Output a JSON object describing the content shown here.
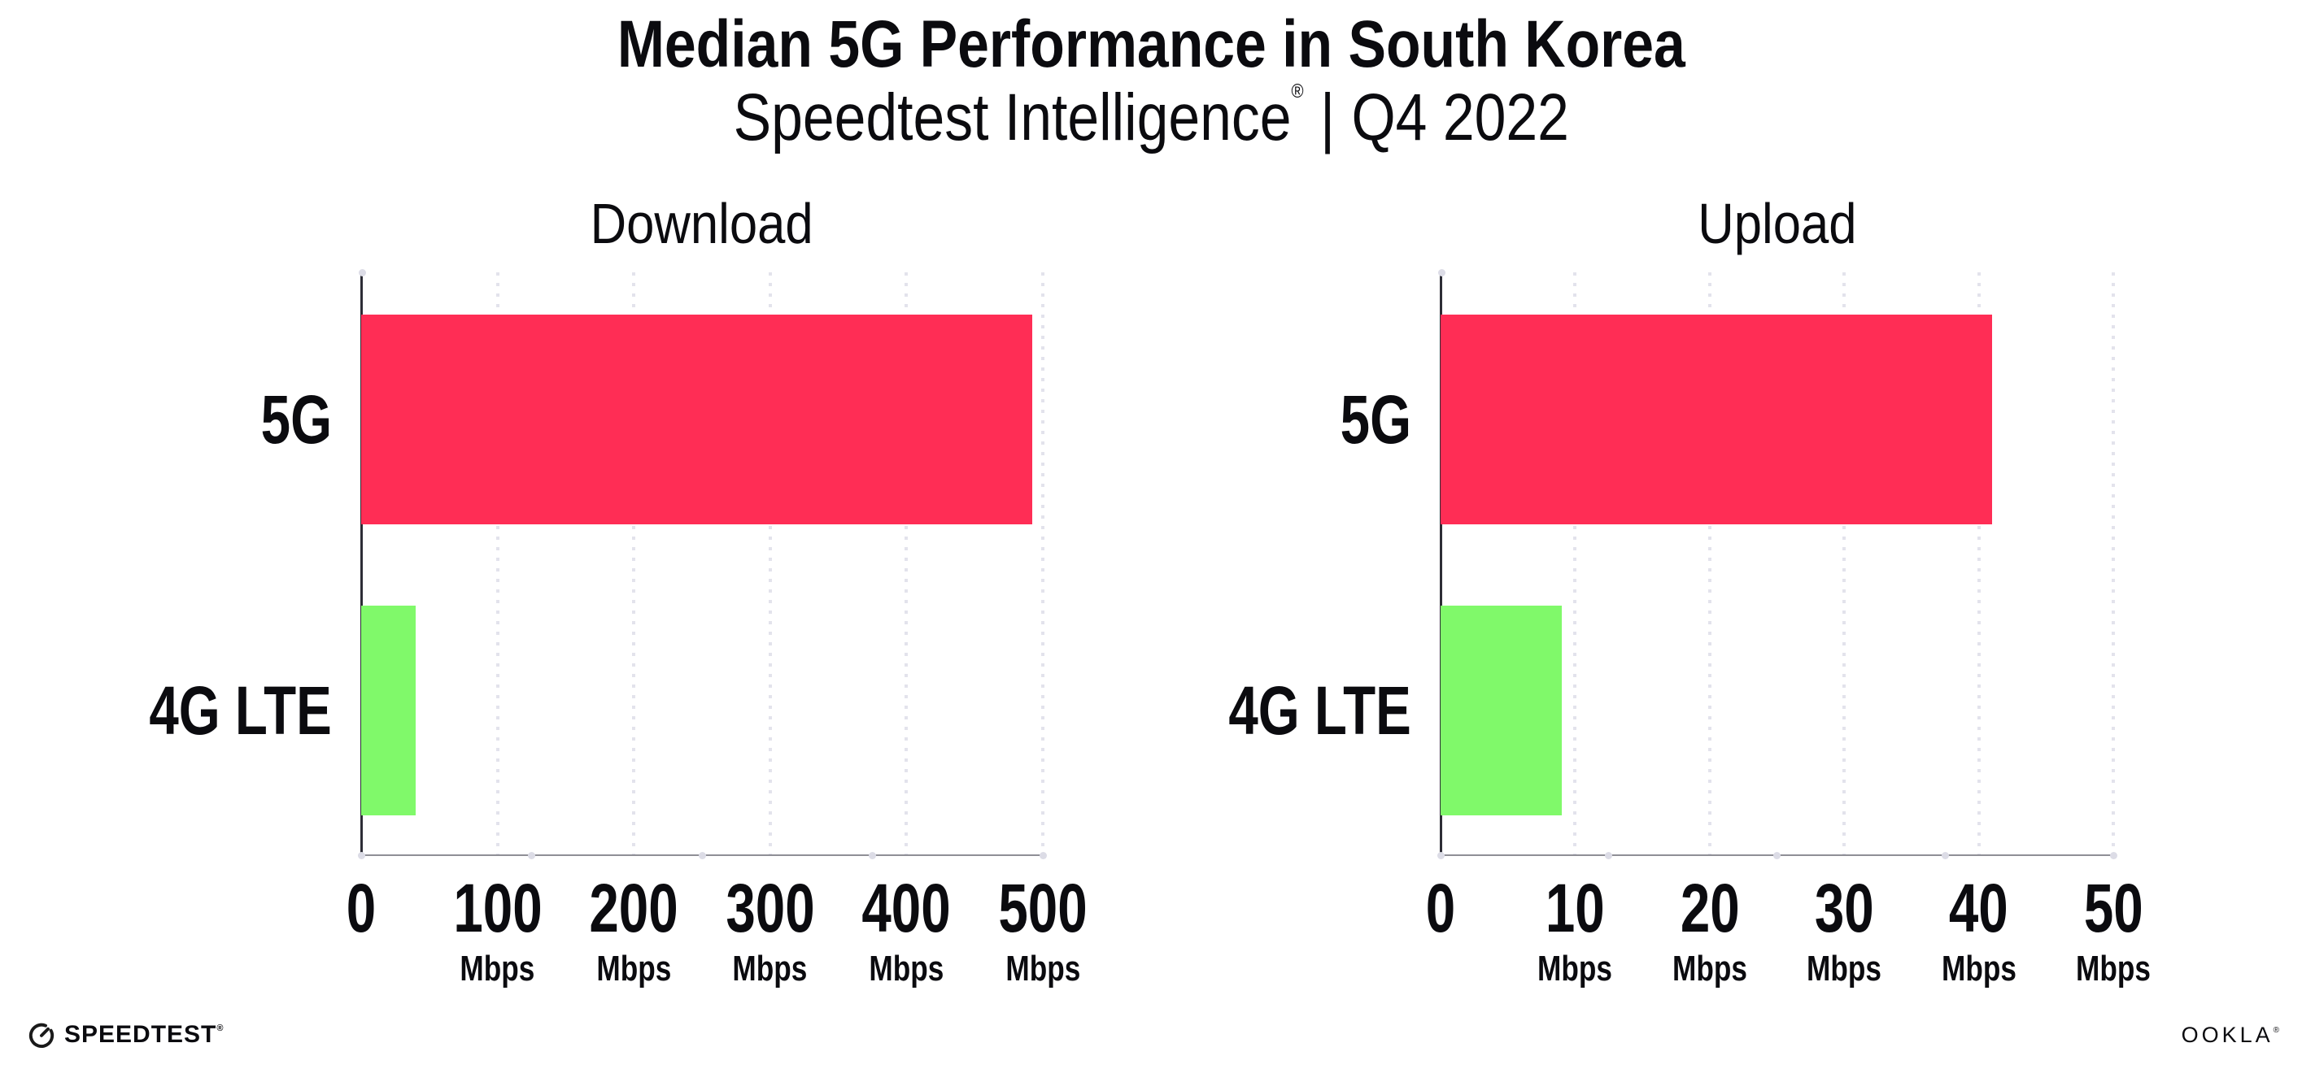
{
  "header": {
    "title": "Median 5G Performance in South Korea",
    "subtitle_brand": "Speedtest Intelligence",
    "subtitle_reg": "®",
    "subtitle_sep": "|",
    "subtitle_period": "Q4 2022"
  },
  "footer": {
    "speedtest_label": "SPEEDTEST",
    "speedtest_mark": "®",
    "ookla_label": "OOKLA",
    "ookla_mark": "®"
  },
  "colors": {
    "bar_5g": "#FF2D55",
    "bar_4g_lte": "#80F96A",
    "y_axis": "#2D2D36",
    "x_axis": "#8F8F96",
    "gridline": "#E3E3EC",
    "axis_dot": "#DCDCE6",
    "text": "#0B0B0F"
  },
  "chart_data": [
    {
      "type": "bar",
      "orientation": "horizontal",
      "title": "Download",
      "categories": [
        "5G",
        "4G LTE"
      ],
      "values": [
        492,
        40
      ],
      "unit": "Mbps",
      "xlim": [
        0,
        500
      ],
      "ticks": [
        0,
        100,
        200,
        300,
        400,
        500
      ],
      "bar_colors": [
        "#FF2D55",
        "#80F96A"
      ],
      "grid": "dotted-vertical",
      "legend": "none",
      "value_labels": false
    },
    {
      "type": "bar",
      "orientation": "horizontal",
      "title": "Upload",
      "categories": [
        "5G",
        "4G LTE"
      ],
      "values": [
        41,
        9
      ],
      "unit": "Mbps",
      "xlim": [
        0,
        50
      ],
      "ticks": [
        0,
        10,
        20,
        30,
        40,
        50
      ],
      "bar_colors": [
        "#FF2D55",
        "#80F96A"
      ],
      "grid": "dotted-vertical",
      "legend": "none",
      "value_labels": false
    }
  ]
}
